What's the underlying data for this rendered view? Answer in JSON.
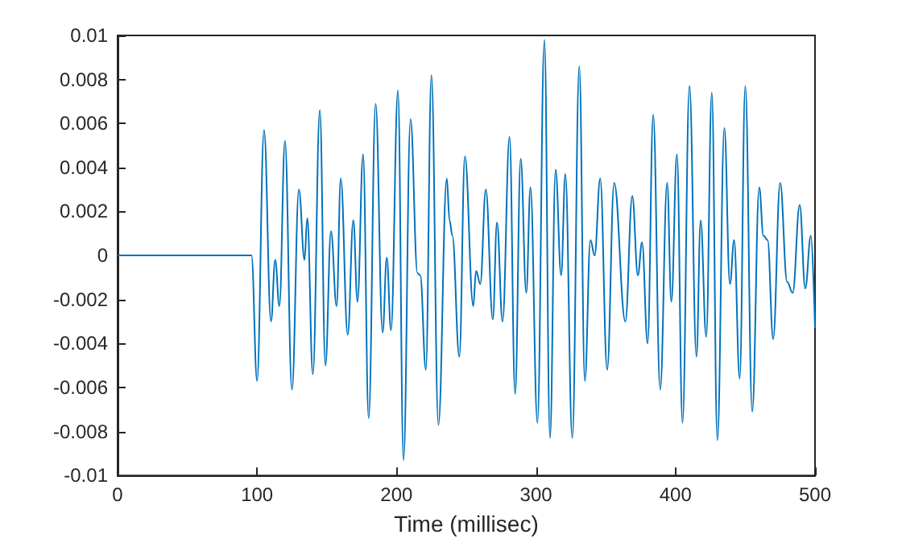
{
  "chart_data": {
    "type": "line",
    "xlabel": "Time (millisec)",
    "color": "#0072bd",
    "x": [
      0,
      96,
      100,
      105,
      110,
      113,
      116,
      120,
      125,
      130,
      134,
      136,
      140,
      145,
      149,
      153,
      157,
      160,
      165,
      169,
      172,
      176,
      180,
      185,
      190,
      193,
      196,
      201,
      205,
      210,
      215,
      217,
      221,
      225,
      230,
      236,
      238,
      240,
      245,
      249,
      255,
      257,
      260,
      264,
      269,
      272,
      276,
      281,
      285,
      289,
      293,
      296,
      301,
      306,
      310,
      314,
      318,
      321,
      326,
      331,
      335,
      339,
      342,
      346,
      351,
      356,
      364,
      369,
      373,
      376,
      380,
      384,
      389,
      394,
      397,
      401,
      405,
      410,
      415,
      418,
      422,
      426,
      430,
      435,
      439,
      442,
      446,
      450,
      455,
      460,
      463,
      466,
      470,
      475,
      480,
      484,
      489,
      493,
      497,
      500
    ],
    "values": [
      0,
      0,
      -0.0057,
      0.0057,
      -0.003,
      -0.0002,
      -0.0023,
      0.0052,
      -0.0061,
      0.003,
      -0.0002,
      0.0017,
      -0.0054,
      0.0066,
      -0.005,
      0.0011,
      -0.0023,
      0.0035,
      -0.0036,
      0.0016,
      -0.0021,
      0.0046,
      -0.0074,
      0.0069,
      -0.0035,
      -0.0001,
      -0.0034,
      0.0075,
      -0.0093,
      0.0062,
      -0.0008,
      -0.0009,
      -0.0052,
      0.0082,
      -0.0077,
      0.0035,
      0.0016,
      0.0009,
      -0.0046,
      0.0045,
      -0.0023,
      -0.0007,
      -0.0013,
      0.003,
      -0.0029,
      0.0015,
      -0.003,
      0.0054,
      -0.0063,
      0.0044,
      -0.0017,
      0.0031,
      -0.0076,
      0.0098,
      -0.0083,
      0.0039,
      -0.0009,
      0.0037,
      -0.0083,
      0.0086,
      -0.0057,
      0.0007,
      0,
      0.0035,
      -0.0052,
      0.0033,
      -0.003,
      0.0027,
      -0.0009,
      0.0006,
      -0.004,
      0.0064,
      -0.0061,
      0.0033,
      -0.0021,
      0.0046,
      -0.0076,
      0.0077,
      -0.0046,
      0.0016,
      -0.0037,
      0.0074,
      -0.0084,
      0.0058,
      -0.0013,
      0.0007,
      -0.0056,
      0.0077,
      -0.0071,
      0.0031,
      0.0009,
      0.0007,
      -0.0038,
      0.0033,
      -0.0012,
      -0.0017,
      0.0023,
      -0.0015,
      0.0009,
      -0.0033
    ],
    "xlim": [
      0,
      500
    ],
    "xticks": [
      0,
      100,
      200,
      300,
      400,
      500
    ],
    "ylim": [
      -0.01,
      0.01
    ],
    "yticks": [
      -0.01,
      -0.008,
      -0.006,
      -0.004,
      -0.002,
      0,
      0.002,
      0.004,
      0.006,
      0.008,
      0.01
    ],
    "grid": false,
    "marker": "none",
    "line_style": "solid"
  }
}
